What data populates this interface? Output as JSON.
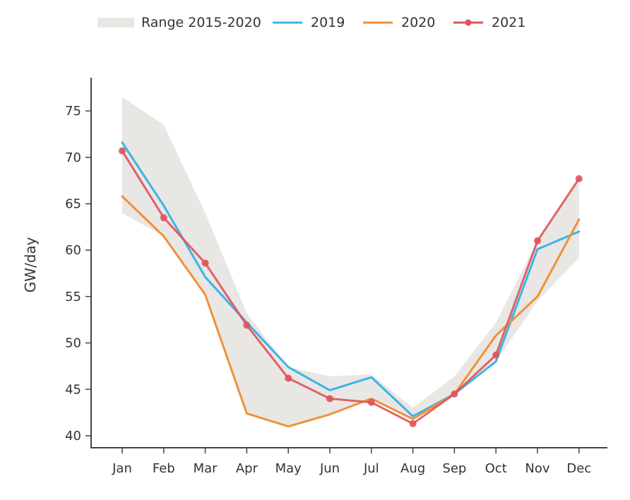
{
  "chart_data": {
    "type": "line",
    "title": "",
    "xlabel": "",
    "ylabel": "GW/day",
    "ylim": [
      39,
      78
    ],
    "yticks": [
      40,
      45,
      50,
      55,
      60,
      65,
      70,
      75
    ],
    "grid": false,
    "legend_position": "top-center",
    "categories": [
      "Jan",
      "Feb",
      "Mar",
      "Apr",
      "May",
      "Jun",
      "Jul",
      "Aug",
      "Sep",
      "Oct",
      "Nov",
      "Dec"
    ],
    "range": {
      "name": "Range 2015-2020",
      "color": "#e8e7e4",
      "low": [
        64.0,
        61.5,
        55.2,
        42.4,
        41.0,
        42.3,
        44.0,
        41.8,
        44.5,
        48.0,
        54.5,
        59.2
      ],
      "high": [
        76.5,
        73.5,
        64.0,
        53.2,
        47.4,
        46.4,
        46.6,
        43.0,
        46.4,
        52.2,
        61.0,
        67.5
      ]
    },
    "series": [
      {
        "name": "2019",
        "color": "#3bb4e5",
        "markers": false,
        "values": [
          71.6,
          64.8,
          57.1,
          52.2,
          47.4,
          44.9,
          46.3,
          42.1,
          44.5,
          48.0,
          60.1,
          62.0
        ]
      },
      {
        "name": "2020",
        "color": "#f0913a",
        "markers": false,
        "values": [
          65.8,
          61.5,
          55.2,
          42.4,
          41.0,
          42.3,
          44.0,
          41.8,
          44.5,
          50.8,
          55.0,
          63.3
        ]
      },
      {
        "name": "2021",
        "color": "#e0525a",
        "markers": true,
        "values": [
          70.7,
          63.5,
          58.6,
          51.9,
          46.2,
          44.0,
          43.6,
          41.3,
          44.5,
          48.7,
          61.0,
          67.7
        ]
      }
    ]
  }
}
